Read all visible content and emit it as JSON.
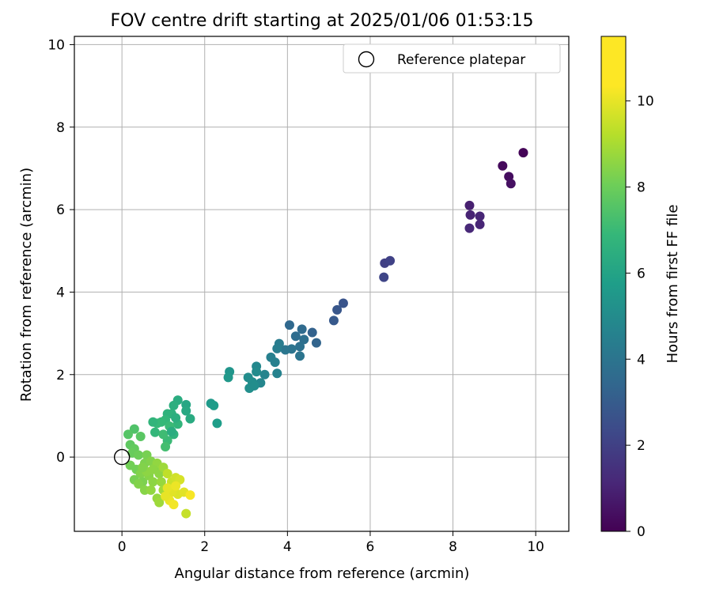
{
  "chart_data": {
    "type": "scatter",
    "title": "FOV centre drift starting at 2025/01/06 01:53:15",
    "xlabel": "Angular distance from reference (arcmin)",
    "ylabel": "Rotation from reference (arcmin)",
    "xlim": [
      -1.15,
      10.8
    ],
    "ylim": [
      -1.8,
      10.2
    ],
    "xticks": [
      0,
      2,
      4,
      6,
      8,
      10
    ],
    "yticks": [
      0,
      2,
      4,
      6,
      8,
      10
    ],
    "grid": true,
    "legend": {
      "placement": "top-right",
      "entries": [
        "Reference platepar"
      ]
    },
    "reference_point": {
      "x": 0,
      "y": 0,
      "label": "Reference platepar"
    },
    "colorbar": {
      "label": "Hours from first FF file",
      "colormap": "viridis",
      "range": [
        0,
        11.5
      ],
      "ticks": [
        0,
        2,
        4,
        6,
        8,
        10
      ]
    },
    "points": [
      {
        "x": 9.7,
        "y": 7.38,
        "c": 0.1
      },
      {
        "x": 9.2,
        "y": 7.06,
        "c": 0.3
      },
      {
        "x": 9.35,
        "y": 6.8,
        "c": 0.4
      },
      {
        "x": 9.4,
        "y": 6.63,
        "c": 0.5
      },
      {
        "x": 8.4,
        "y": 6.1,
        "c": 1.0
      },
      {
        "x": 8.42,
        "y": 5.87,
        "c": 1.1
      },
      {
        "x": 8.65,
        "y": 5.84,
        "c": 1.2
      },
      {
        "x": 8.4,
        "y": 5.55,
        "c": 1.3
      },
      {
        "x": 8.65,
        "y": 5.64,
        "c": 1.2
      },
      {
        "x": 6.35,
        "y": 4.7,
        "c": 2.2
      },
      {
        "x": 6.48,
        "y": 4.76,
        "c": 2.3
      },
      {
        "x": 6.33,
        "y": 4.36,
        "c": 2.4
      },
      {
        "x": 5.35,
        "y": 3.73,
        "c": 3.0
      },
      {
        "x": 5.2,
        "y": 3.57,
        "c": 3.1
      },
      {
        "x": 5.12,
        "y": 3.31,
        "c": 3.2
      },
      {
        "x": 4.6,
        "y": 3.02,
        "c": 3.6
      },
      {
        "x": 4.7,
        "y": 2.77,
        "c": 3.7
      },
      {
        "x": 4.05,
        "y": 3.2,
        "c": 3.9
      },
      {
        "x": 4.35,
        "y": 3.1,
        "c": 4.0
      },
      {
        "x": 4.2,
        "y": 2.93,
        "c": 4.1
      },
      {
        "x": 4.4,
        "y": 2.85,
        "c": 4.2
      },
      {
        "x": 4.3,
        "y": 2.68,
        "c": 4.3
      },
      {
        "x": 4.1,
        "y": 2.62,
        "c": 4.4
      },
      {
        "x": 3.95,
        "y": 2.6,
        "c": 4.5
      },
      {
        "x": 4.3,
        "y": 2.45,
        "c": 4.4
      },
      {
        "x": 3.8,
        "y": 2.75,
        "c": 4.8
      },
      {
        "x": 3.75,
        "y": 2.63,
        "c": 4.9
      },
      {
        "x": 3.6,
        "y": 2.42,
        "c": 5.0
      },
      {
        "x": 3.7,
        "y": 2.3,
        "c": 5.0
      },
      {
        "x": 3.75,
        "y": 2.03,
        "c": 5.1
      },
      {
        "x": 3.45,
        "y": 2.0,
        "c": 5.2
      },
      {
        "x": 3.35,
        "y": 1.8,
        "c": 5.3
      },
      {
        "x": 3.25,
        "y": 2.2,
        "c": 5.4
      },
      {
        "x": 3.25,
        "y": 2.07,
        "c": 5.5
      },
      {
        "x": 3.05,
        "y": 1.93,
        "c": 5.6
      },
      {
        "x": 3.15,
        "y": 1.82,
        "c": 5.6
      },
      {
        "x": 3.08,
        "y": 1.67,
        "c": 5.7
      },
      {
        "x": 3.2,
        "y": 1.73,
        "c": 5.6
      },
      {
        "x": 2.6,
        "y": 2.07,
        "c": 6.0
      },
      {
        "x": 2.57,
        "y": 1.93,
        "c": 6.1
      },
      {
        "x": 2.15,
        "y": 1.3,
        "c": 6.2
      },
      {
        "x": 2.22,
        "y": 1.25,
        "c": 6.3
      },
      {
        "x": 2.3,
        "y": 0.82,
        "c": 6.4
      },
      {
        "x": 1.55,
        "y": 1.27,
        "c": 6.8
      },
      {
        "x": 1.55,
        "y": 1.12,
        "c": 6.9
      },
      {
        "x": 1.65,
        "y": 0.93,
        "c": 7.0
      },
      {
        "x": 1.35,
        "y": 1.38,
        "c": 7.1
      },
      {
        "x": 1.25,
        "y": 1.25,
        "c": 7.2
      },
      {
        "x": 1.2,
        "y": 1.05,
        "c": 7.3
      },
      {
        "x": 1.1,
        "y": 1.05,
        "c": 7.4
      },
      {
        "x": 1.35,
        "y": 0.8,
        "c": 7.5
      },
      {
        "x": 1.05,
        "y": 0.9,
        "c": 7.6
      },
      {
        "x": 0.95,
        "y": 0.85,
        "c": 7.7
      },
      {
        "x": 0.85,
        "y": 0.82,
        "c": 7.7
      },
      {
        "x": 0.8,
        "y": 0.6,
        "c": 7.6
      },
      {
        "x": 1.15,
        "y": 0.75,
        "c": 7.8
      },
      {
        "x": 1.25,
        "y": 0.55,
        "c": 7.4
      },
      {
        "x": 1.1,
        "y": 0.4,
        "c": 7.8
      },
      {
        "x": 0.75,
        "y": 0.85,
        "c": 7.5
      },
      {
        "x": 1.3,
        "y": 0.95,
        "c": 7.2
      },
      {
        "x": 1.0,
        "y": 0.55,
        "c": 7.9
      },
      {
        "x": 1.05,
        "y": 0.25,
        "c": 8.0
      },
      {
        "x": 1.2,
        "y": 0.62,
        "c": 7.1
      },
      {
        "x": 0.3,
        "y": 0.68,
        "c": 8.3
      },
      {
        "x": 0.15,
        "y": 0.55,
        "c": 8.4
      },
      {
        "x": 0.45,
        "y": 0.5,
        "c": 8.5
      },
      {
        "x": 0.2,
        "y": 0.3,
        "c": 8.6
      },
      {
        "x": 0.3,
        "y": 0.2,
        "c": 8.7
      },
      {
        "x": 0.25,
        "y": 0.1,
        "c": 8.8
      },
      {
        "x": 0.4,
        "y": 0.05,
        "c": 8.9
      },
      {
        "x": 0.2,
        "y": -0.2,
        "c": 9.0
      },
      {
        "x": 0.35,
        "y": -0.3,
        "c": 9.0
      },
      {
        "x": 0.6,
        "y": 0.05,
        "c": 9.1
      },
      {
        "x": 0.55,
        "y": -0.15,
        "c": 9.2
      },
      {
        "x": 0.7,
        "y": -0.1,
        "c": 9.3
      },
      {
        "x": 0.45,
        "y": -0.4,
        "c": 9.3
      },
      {
        "x": 0.8,
        "y": -0.25,
        "c": 9.4
      },
      {
        "x": 0.3,
        "y": -0.55,
        "c": 9.1
      },
      {
        "x": 0.5,
        "y": -0.6,
        "c": 9.2
      },
      {
        "x": 0.65,
        "y": -0.45,
        "c": 9.4
      },
      {
        "x": 0.4,
        "y": -0.65,
        "c": 9.3
      },
      {
        "x": 0.9,
        "y": -0.4,
        "c": 9.5
      },
      {
        "x": 0.85,
        "y": -0.15,
        "c": 9.6
      },
      {
        "x": 0.75,
        "y": -0.6,
        "c": 9.5
      },
      {
        "x": 0.55,
        "y": -0.8,
        "c": 9.4
      },
      {
        "x": 0.7,
        "y": -0.8,
        "c": 9.6
      },
      {
        "x": 0.95,
        "y": -0.6,
        "c": 9.7
      },
      {
        "x": 0.6,
        "y": -0.35,
        "c": 9.5
      },
      {
        "x": 1.0,
        "y": -0.25,
        "c": 9.8
      },
      {
        "x": 0.85,
        "y": -1.0,
        "c": 9.7
      },
      {
        "x": 0.9,
        "y": -1.1,
        "c": 9.8
      },
      {
        "x": 1.0,
        "y": -0.8,
        "c": 9.9
      },
      {
        "x": 0.5,
        "y": -0.25,
        "c": 9.3
      },
      {
        "x": 0.75,
        "y": -0.3,
        "c": 9.5
      },
      {
        "x": 1.1,
        "y": -0.4,
        "c": 10.4
      },
      {
        "x": 1.2,
        "y": -0.6,
        "c": 10.6
      },
      {
        "x": 1.3,
        "y": -0.5,
        "c": 10.7
      },
      {
        "x": 1.4,
        "y": -0.55,
        "c": 10.8
      },
      {
        "x": 1.35,
        "y": -0.9,
        "c": 10.9
      },
      {
        "x": 1.2,
        "y": -0.85,
        "c": 11.0
      },
      {
        "x": 1.1,
        "y": -0.75,
        "c": 11.1
      },
      {
        "x": 1.15,
        "y": -1.05,
        "c": 11.2
      },
      {
        "x": 1.25,
        "y": -1.15,
        "c": 11.3
      },
      {
        "x": 1.5,
        "y": -0.85,
        "c": 11.0
      },
      {
        "x": 1.65,
        "y": -0.92,
        "c": 11.4
      },
      {
        "x": 1.55,
        "y": -1.37,
        "c": 10.5
      },
      {
        "x": 1.05,
        "y": -0.95,
        "c": 11.1
      },
      {
        "x": 1.3,
        "y": -0.7,
        "c": 11.2
      }
    ]
  }
}
